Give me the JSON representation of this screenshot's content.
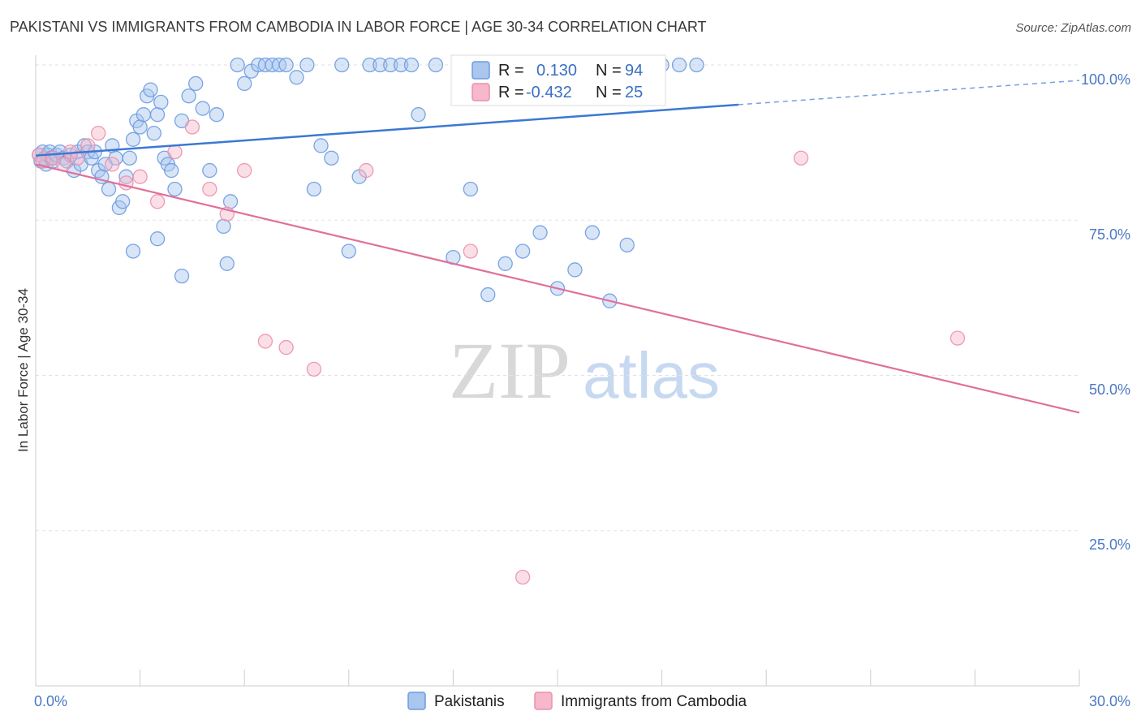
{
  "header": {
    "title": "PAKISTANI VS IMMIGRANTS FROM CAMBODIA IN LABOR FORCE | AGE 30-34 CORRELATION CHART",
    "source": "Source: ZipAtlas.com"
  },
  "watermark": {
    "zip": "ZIP",
    "atlas": "atlas"
  },
  "legend": {
    "r_label": "R =",
    "n_label": "N =",
    "pakistanis": {
      "r": "0.130",
      "n": "94"
    },
    "cambodia": {
      "r": "-0.432",
      "n": "25"
    }
  },
  "bottom_legend": {
    "pakistanis": "Pakistanis",
    "cambodia": "Immigrants from Cambodia"
  },
  "colors": {
    "blue_fill": "#a9c6ee",
    "blue_stroke": "#6d9be0",
    "blue_line": "#3b78d4",
    "pink_fill": "#f6b8ca",
    "pink_stroke": "#ec8fac",
    "pink_line": "#e0709a"
  },
  "chart_data": {
    "type": "scatter",
    "title": "PAKISTANI VS IMMIGRANTS FROM CAMBODIA IN LABOR FORCE | AGE 30-34 CORRELATION CHART",
    "xlabel": "",
    "ylabel": "In Labor Force | Age 30-34",
    "xlim": [
      0,
      30
    ],
    "ylim": [
      0,
      100
    ],
    "x_tick_labels": [
      "0.0%",
      "30.0%"
    ],
    "y_ticks": [
      25,
      50,
      75,
      100
    ],
    "y_tick_labels": [
      "25.0%",
      "50.0%",
      "75.0%",
      "100.0%"
    ],
    "series": [
      {
        "name": "Pakistanis",
        "r": 0.13,
        "n": 94,
        "trend": {
          "x0": 0,
          "y0": 85.4,
          "x1": 20.2,
          "y1": 93.6,
          "dashed_to_x": 30,
          "dashed_to_y": 97.5
        },
        "points": [
          [
            0.1,
            85.5
          ],
          [
            0.15,
            84.5
          ],
          [
            0.2,
            86
          ],
          [
            0.25,
            85
          ],
          [
            0.3,
            84
          ],
          [
            0.35,
            85.5
          ],
          [
            0.4,
            86
          ],
          [
            0.45,
            85
          ],
          [
            0.5,
            84.5
          ],
          [
            0.6,
            85.5
          ],
          [
            0.7,
            86
          ],
          [
            0.8,
            85
          ],
          [
            0.9,
            84.5
          ],
          [
            1.0,
            85.5
          ],
          [
            1.1,
            83
          ],
          [
            1.2,
            86
          ],
          [
            1.3,
            84
          ],
          [
            1.4,
            87
          ],
          [
            1.5,
            86
          ],
          [
            1.6,
            85
          ],
          [
            1.7,
            86
          ],
          [
            1.8,
            83
          ],
          [
            1.9,
            82
          ],
          [
            2.0,
            84
          ],
          [
            2.1,
            80
          ],
          [
            2.2,
            87
          ],
          [
            2.3,
            85
          ],
          [
            2.4,
            77
          ],
          [
            2.5,
            78
          ],
          [
            2.6,
            82
          ],
          [
            2.7,
            85
          ],
          [
            2.8,
            88
          ],
          [
            2.9,
            91
          ],
          [
            3.0,
            90
          ],
          [
            3.1,
            92
          ],
          [
            3.2,
            95
          ],
          [
            3.3,
            96
          ],
          [
            3.4,
            89
          ],
          [
            3.5,
            92
          ],
          [
            3.6,
            94
          ],
          [
            3.7,
            85
          ],
          [
            3.8,
            84
          ],
          [
            3.9,
            83
          ],
          [
            4.0,
            80
          ],
          [
            4.2,
            91
          ],
          [
            4.4,
            95
          ],
          [
            4.6,
            97
          ],
          [
            4.8,
            93
          ],
          [
            5.0,
            83
          ],
          [
            5.2,
            92
          ],
          [
            5.4,
            74
          ],
          [
            5.6,
            78
          ],
          [
            5.8,
            100
          ],
          [
            6.0,
            97
          ],
          [
            6.2,
            99
          ],
          [
            6.4,
            100
          ],
          [
            6.6,
            100
          ],
          [
            6.8,
            100
          ],
          [
            7.0,
            100
          ],
          [
            7.2,
            100
          ],
          [
            7.5,
            98
          ],
          [
            7.8,
            100
          ],
          [
            8.0,
            80
          ],
          [
            8.2,
            87
          ],
          [
            8.5,
            85
          ],
          [
            8.8,
            100
          ],
          [
            9.0,
            70
          ],
          [
            9.3,
            82
          ],
          [
            9.6,
            100
          ],
          [
            9.9,
            100
          ],
          [
            10.2,
            100
          ],
          [
            10.5,
            100
          ],
          [
            10.8,
            100
          ],
          [
            11.0,
            92
          ],
          [
            11.5,
            100
          ],
          [
            12.0,
            69
          ],
          [
            12.5,
            80
          ],
          [
            13.0,
            63
          ],
          [
            13.5,
            68
          ],
          [
            14.0,
            70
          ],
          [
            14.5,
            73
          ],
          [
            15.0,
            64
          ],
          [
            15.5,
            67
          ],
          [
            16.0,
            73
          ],
          [
            16.5,
            62
          ],
          [
            17.0,
            71
          ],
          [
            17.5,
            100
          ],
          [
            18.0,
            100
          ],
          [
            18.5,
            100
          ],
          [
            19.0,
            100
          ],
          [
            2.8,
            70
          ],
          [
            3.5,
            72
          ],
          [
            4.2,
            66
          ],
          [
            5.5,
            68
          ]
        ]
      },
      {
        "name": "Immigrants from Cambodia",
        "r": -0.432,
        "n": 25,
        "trend": {
          "x0": 0,
          "y0": 84.0,
          "x1": 30,
          "y1": 44.0
        },
        "points": [
          [
            0.1,
            85.5
          ],
          [
            0.2,
            84.5
          ],
          [
            0.5,
            85
          ],
          [
            0.8,
            84
          ],
          [
            1.0,
            86
          ],
          [
            1.2,
            85
          ],
          [
            1.5,
            87
          ],
          [
            1.8,
            89
          ],
          [
            2.2,
            84
          ],
          [
            2.6,
            81
          ],
          [
            3.0,
            82
          ],
          [
            3.5,
            78
          ],
          [
            4.0,
            86
          ],
          [
            4.5,
            90
          ],
          [
            5.0,
            80
          ],
          [
            5.5,
            76
          ],
          [
            6.0,
            83
          ],
          [
            6.6,
            55.5
          ],
          [
            7.2,
            54.5
          ],
          [
            8.0,
            51
          ],
          [
            9.5,
            83
          ],
          [
            12.5,
            70
          ],
          [
            14.0,
            17.5
          ],
          [
            22.0,
            85
          ],
          [
            26.5,
            56
          ]
        ]
      }
    ]
  }
}
